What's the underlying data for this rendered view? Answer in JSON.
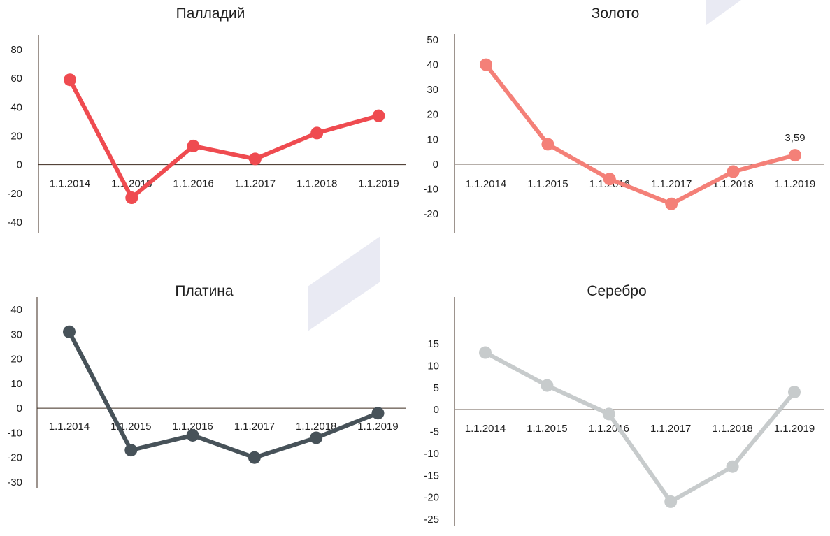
{
  "chart_data": [
    {
      "type": "line",
      "title": "Палладий",
      "categories": [
        "1.1.2014",
        "1.1.2015",
        "1.1.2016",
        "1.1.2017",
        "1.1.2018",
        "1.1.2019"
      ],
      "values": [
        59,
        -23,
        13,
        4,
        22,
        34
      ],
      "yticks": [
        80,
        60,
        40,
        20,
        0,
        -20,
        -40
      ],
      "ylim": [
        -47,
        91
      ],
      "color": "#ef4b50",
      "data_labels": {},
      "grid": false,
      "legend": "none"
    },
    {
      "type": "line",
      "title": "Золото",
      "categories": [
        "1.1.2014",
        "1.1.2015",
        "1.1.2016",
        "1.1.2017",
        "1.1.2018",
        "1.1.2019"
      ],
      "values": [
        40,
        8,
        -6,
        -16,
        -3,
        3.59
      ],
      "yticks": [
        50,
        40,
        30,
        20,
        10,
        0,
        -10,
        -20
      ],
      "ylim": [
        -27,
        54
      ],
      "color": "#f48078",
      "data_labels": {
        "5": "3,59"
      },
      "grid": false,
      "legend": "none"
    },
    {
      "type": "line",
      "title": "Платина",
      "categories": [
        "1.1.2014",
        "1.1.2015",
        "1.1.2016",
        "1.1.2017",
        "1.1.2018",
        "1.1.2019"
      ],
      "values": [
        31,
        -17,
        -11,
        -20,
        -12,
        -2
      ],
      "yticks": [
        40,
        30,
        20,
        10,
        0,
        -10,
        -20,
        -30
      ],
      "ylim": [
        -32,
        45
      ],
      "color": "#475259",
      "data_labels": {},
      "grid": false,
      "legend": "none"
    },
    {
      "type": "line",
      "title": "Серебро",
      "categories": [
        "1.1.2014",
        "1.1.2015",
        "1.1.2016",
        "1.1.2017",
        "1.1.2018",
        "1.1.2019"
      ],
      "values": [
        13,
        5.5,
        -1,
        -21,
        -13,
        4
      ],
      "yticks": [
        15,
        10,
        5,
        0,
        -5,
        -10,
        -15,
        -20,
        -25
      ],
      "ylim": [
        -27,
        25
      ],
      "color": "#c7cbcc",
      "data_labels": {},
      "grid": false,
      "legend": "none"
    }
  ]
}
